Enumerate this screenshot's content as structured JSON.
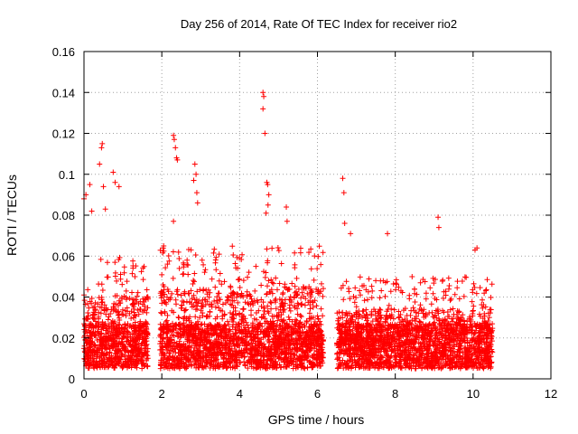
{
  "chart_data": {
    "type": "scatter",
    "title": "Day 256 of 2014, Rate Of TEC Index for receiver rio2",
    "xlabel": "GPS time / hours",
    "ylabel": "ROTI / TECUs",
    "xlim": [
      0,
      12
    ],
    "ylim": [
      0,
      0.16
    ],
    "x_ticks": [
      0,
      2,
      4,
      6,
      8,
      10,
      12
    ],
    "x_tick_labels": [
      "0",
      "2",
      "4",
      "6",
      "8",
      "10",
      "12"
    ],
    "y_ticks": [
      0,
      0.02,
      0.04,
      0.06,
      0.08,
      0.1,
      0.12,
      0.14,
      0.16
    ],
    "y_tick_labels": [
      "0",
      "0.02",
      "0.04",
      "0.06",
      "0.08",
      "0.1",
      "0.12",
      "0.14",
      "0.16"
    ],
    "grid": true,
    "marker": "+",
    "marker_color": "#ff0000",
    "series": [
      {
        "name": "ROTI",
        "segments": [
          {
            "x_range": [
              0.0,
              1.65
            ],
            "typical_range": [
              0.005,
              0.06
            ]
          },
          {
            "x_range": [
              1.95,
              6.15
            ],
            "typical_range": [
              0.005,
              0.065
            ]
          },
          {
            "x_range": [
              6.5,
              10.5
            ],
            "typical_range": [
              0.005,
              0.05
            ]
          }
        ],
        "peaks": [
          {
            "x": 0.0,
            "y": 0.088
          },
          {
            "x": 0.05,
            "y": 0.09
          },
          {
            "x": 0.15,
            "y": 0.095
          },
          {
            "x": 0.2,
            "y": 0.082
          },
          {
            "x": 0.4,
            "y": 0.105
          },
          {
            "x": 0.45,
            "y": 0.113
          },
          {
            "x": 0.47,
            "y": 0.115
          },
          {
            "x": 0.5,
            "y": 0.094
          },
          {
            "x": 0.55,
            "y": 0.083
          },
          {
            "x": 0.75,
            "y": 0.101
          },
          {
            "x": 0.8,
            "y": 0.096
          },
          {
            "x": 0.9,
            "y": 0.094
          },
          {
            "x": 2.3,
            "y": 0.119
          },
          {
            "x": 2.32,
            "y": 0.117
          },
          {
            "x": 2.35,
            "y": 0.113
          },
          {
            "x": 2.38,
            "y": 0.108
          },
          {
            "x": 2.4,
            "y": 0.107
          },
          {
            "x": 2.3,
            "y": 0.077
          },
          {
            "x": 2.85,
            "y": 0.105
          },
          {
            "x": 2.88,
            "y": 0.1
          },
          {
            "x": 2.82,
            "y": 0.097
          },
          {
            "x": 2.9,
            "y": 0.091
          },
          {
            "x": 2.92,
            "y": 0.086
          },
          {
            "x": 4.6,
            "y": 0.14
          },
          {
            "x": 4.62,
            "y": 0.138
          },
          {
            "x": 4.6,
            "y": 0.132
          },
          {
            "x": 4.65,
            "y": 0.12
          },
          {
            "x": 4.7,
            "y": 0.096
          },
          {
            "x": 4.72,
            "y": 0.095
          },
          {
            "x": 4.75,
            "y": 0.09
          },
          {
            "x": 4.73,
            "y": 0.085
          },
          {
            "x": 4.68,
            "y": 0.081
          },
          {
            "x": 5.2,
            "y": 0.084
          },
          {
            "x": 5.22,
            "y": 0.077
          },
          {
            "x": 6.65,
            "y": 0.098
          },
          {
            "x": 6.68,
            "y": 0.091
          },
          {
            "x": 6.7,
            "y": 0.076
          },
          {
            "x": 6.85,
            "y": 0.071
          },
          {
            "x": 7.8,
            "y": 0.071
          },
          {
            "x": 9.1,
            "y": 0.079
          },
          {
            "x": 9.12,
            "y": 0.074
          },
          {
            "x": 10.05,
            "y": 0.063
          },
          {
            "x": 10.1,
            "y": 0.064
          }
        ]
      }
    ]
  }
}
